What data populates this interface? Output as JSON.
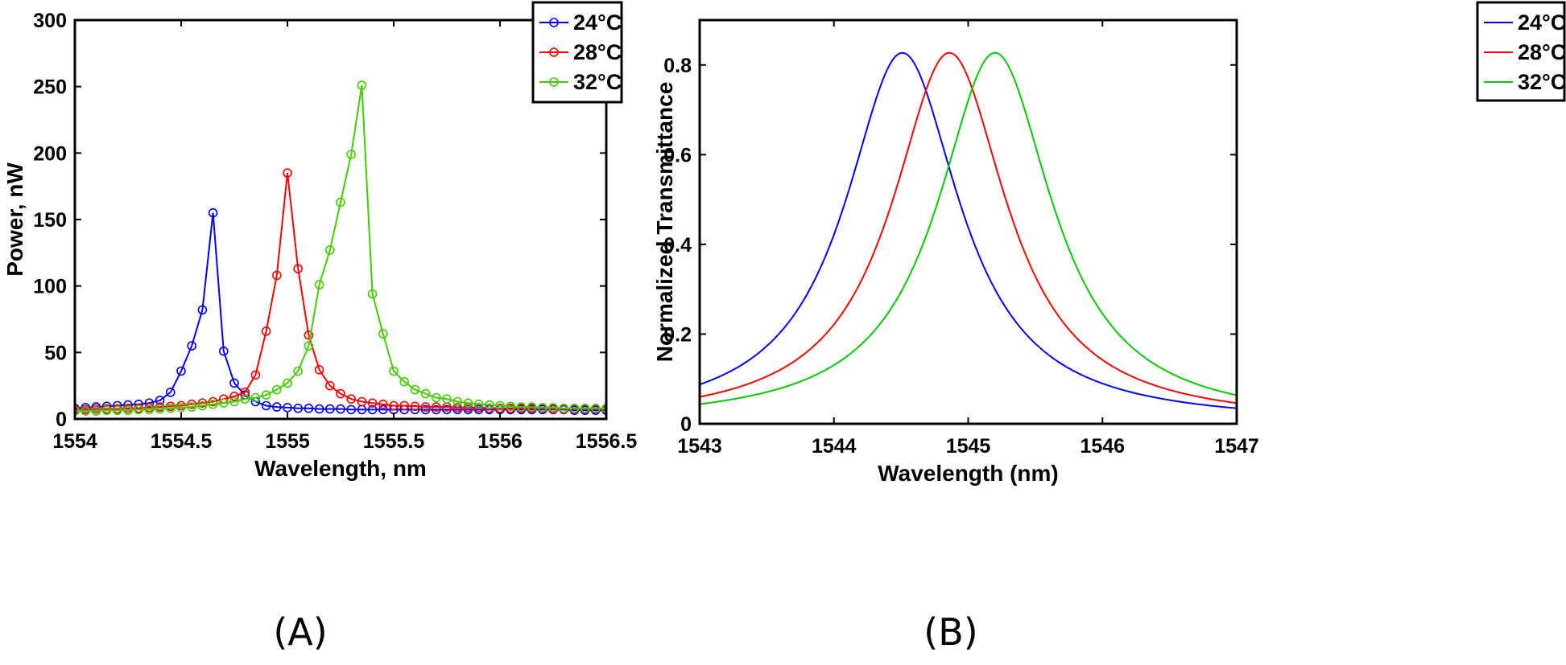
{
  "chart_data": [
    {
      "type": "line",
      "panel_label": "(A)",
      "xlabel": "Wavelength, nm",
      "ylabel": "Power, nW",
      "xlim": [
        1554,
        1556.5
      ],
      "ylim": [
        0,
        300
      ],
      "xticks": [
        1554,
        1554.5,
        1555,
        1555.5,
        1556,
        1556.5
      ],
      "xtick_labels": [
        "1554",
        "1554.5",
        "1555",
        "1555.5",
        "1556",
        "1556.5"
      ],
      "yticks": [
        0,
        50,
        100,
        150,
        200,
        250,
        300
      ],
      "ytick_labels": [
        "0",
        "50",
        "100",
        "150",
        "200",
        "250",
        "300"
      ],
      "legend_position": "top-right",
      "marker": "circle",
      "x": [
        1554,
        1554.05,
        1554.1,
        1554.15,
        1554.2,
        1554.25,
        1554.3,
        1554.35,
        1554.4,
        1554.45,
        1554.5,
        1554.55,
        1554.6,
        1554.65,
        1554.7,
        1554.75,
        1554.8,
        1554.85,
        1554.9,
        1554.95,
        1555,
        1555.05,
        1555.1,
        1555.15,
        1555.2,
        1555.25,
        1555.3,
        1555.35,
        1555.4,
        1555.45,
        1555.5,
        1555.55,
        1555.6,
        1555.65,
        1555.7,
        1555.75,
        1555.8,
        1555.85,
        1555.9,
        1555.95,
        1556,
        1556.05,
        1556.1,
        1556.15,
        1556.2,
        1556.25,
        1556.3,
        1556.35,
        1556.4,
        1556.45,
        1556.5
      ],
      "series": [
        {
          "name": "24°C",
          "color": "#0000ff",
          "values": [
            8,
            8.5,
            9,
            9.5,
            10,
            10.5,
            11,
            12,
            14,
            20,
            36,
            55,
            82,
            155,
            51,
            27,
            18,
            13,
            10,
            9,
            8.5,
            8,
            8,
            7.5,
            7.5,
            7.5,
            7,
            7,
            7,
            7,
            7,
            7,
            7,
            7,
            7,
            7,
            7,
            7,
            7,
            7,
            7,
            7,
            7,
            7,
            7,
            7,
            7,
            6.5,
            6.5,
            6.5,
            6.5
          ]
        },
        {
          "name": "28°C",
          "color": "#ff0000",
          "values": [
            7,
            7,
            7.5,
            7.5,
            7.5,
            8,
            8,
            8.5,
            9,
            9.5,
            10,
            11,
            12,
            13,
            15,
            17,
            20,
            33,
            66,
            108,
            185,
            113,
            63,
            37,
            25,
            19,
            15,
            13,
            12,
            11,
            10,
            10,
            9.5,
            9,
            9,
            9,
            8.5,
            8.5,
            8.5,
            8,
            8,
            8,
            8,
            8,
            8,
            7.5,
            7.5,
            7.5,
            7.5,
            7.5,
            7.5
          ]
        },
        {
          "name": "32°C",
          "color": "#44cc00",
          "values": [
            6,
            6,
            6,
            6.5,
            6.5,
            6.5,
            7,
            7,
            7.5,
            8,
            8.5,
            9,
            10,
            11,
            12,
            13,
            15,
            16,
            18,
            22,
            27,
            36,
            55,
            101,
            127,
            163,
            199,
            251,
            94,
            64,
            36,
            28,
            22,
            19,
            16,
            15,
            13,
            12,
            11,
            10.5,
            10,
            9.5,
            9,
            9,
            8.5,
            8.5,
            8,
            8,
            8,
            8,
            8
          ]
        }
      ]
    },
    {
      "type": "line",
      "panel_label": "(B)",
      "xlabel": "Wavelength (nm)",
      "ylabel": "Normalized Transmittance",
      "xlim": [
        1543,
        1547
      ],
      "ylim": [
        0,
        0.9
      ],
      "xticks": [
        1543,
        1544,
        1545,
        1546,
        1547
      ],
      "xtick_labels": [
        "1543",
        "1544",
        "1545",
        "1546",
        "1547"
      ],
      "yticks": [
        0,
        0.2,
        0.4,
        0.6,
        0.8
      ],
      "ytick_labels": [
        "0",
        "0.2",
        "0.4",
        "0.6",
        "0.8"
      ],
      "legend_position": "top-right",
      "lineshape": "lorentzian",
      "peak_value": 0.827,
      "half_width": 0.52,
      "series": [
        {
          "name": "24°C",
          "color": "#0000ff",
          "center": 1544.51
        },
        {
          "name": "28°C",
          "color": "#ff0000",
          "center": 1544.86
        },
        {
          "name": "32°C",
          "color": "#00cc00",
          "center": 1545.2
        }
      ]
    }
  ]
}
